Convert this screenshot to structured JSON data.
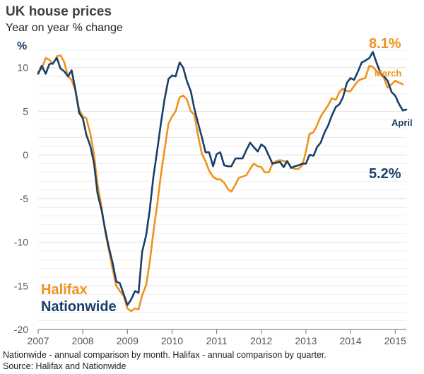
{
  "title": "UK house prices",
  "subtitle": "Year on year % change",
  "colors": {
    "halifax": "#f0921c",
    "nationwide": "#183f6a",
    "grid": "#e1e1e1",
    "axis": "#6e6e6e"
  },
  "footnotes": {
    "note": "Nationwide - annual comparison by month. Halifax - annual comparison by quarter.",
    "source": "Source: Halifax and Nationwide"
  },
  "chart_data": {
    "type": "line",
    "title": "UK house prices",
    "subtitle": "Year on year % change",
    "ylabel": "%",
    "xlabel": "",
    "xlim": [
      2007.0,
      2015.25
    ],
    "ylim": [
      -20,
      12
    ],
    "grid": true,
    "y_ticks": [
      {
        "value": 10,
        "label": "10"
      },
      {
        "value": 5,
        "label": "5"
      },
      {
        "value": 0,
        "label": "0"
      },
      {
        "value": -5,
        "label": "-5"
      },
      {
        "value": -10,
        "label": "-10"
      },
      {
        "value": -15,
        "label": "-15"
      },
      {
        "value": -20,
        "label": "-20"
      }
    ],
    "x_ticks": [
      {
        "value": 2007,
        "label": "2007"
      },
      {
        "value": 2008,
        "label": "2008"
      },
      {
        "value": 2009,
        "label": "2009"
      },
      {
        "value": 2010,
        "label": "2010"
      },
      {
        "value": 2011,
        "label": "2011"
      },
      {
        "value": 2012,
        "label": "2012"
      },
      {
        "value": 2013,
        "label": "2013"
      },
      {
        "value": 2014,
        "label": "2014"
      },
      {
        "value": 2015,
        "label": "2015"
      }
    ],
    "legend": [
      {
        "name": "Halifax",
        "series": "halifax",
        "placement": "bottom-left"
      },
      {
        "name": "Nationwide",
        "series": "nationwide",
        "placement": "bottom-left"
      }
    ],
    "annotations": {
      "halifax_latest_value": "8.1%",
      "halifax_latest_month": "March",
      "nationwide_latest_value": "5.2%",
      "nationwide_latest_month": "April"
    },
    "series": [
      {
        "name": "Halifax",
        "key": "halifax",
        "x": [
          2007.0,
          2007.08,
          2007.17,
          2007.25,
          2007.33,
          2007.42,
          2007.5,
          2007.58,
          2007.67,
          2007.75,
          2007.83,
          2007.92,
          2008.0,
          2008.08,
          2008.17,
          2008.25,
          2008.33,
          2008.42,
          2008.5,
          2008.58,
          2008.67,
          2008.75,
          2008.83,
          2008.92,
          2009.0,
          2009.08,
          2009.17,
          2009.25,
          2009.33,
          2009.42,
          2009.5,
          2009.58,
          2009.67,
          2009.75,
          2009.83,
          2009.92,
          2010.0,
          2010.08,
          2010.17,
          2010.25,
          2010.33,
          2010.42,
          2010.5,
          2010.58,
          2010.67,
          2010.75,
          2010.83,
          2010.92,
          2011.0,
          2011.08,
          2011.17,
          2011.25,
          2011.33,
          2011.42,
          2011.5,
          2011.58,
          2011.67,
          2011.75,
          2011.83,
          2011.92,
          2012.0,
          2012.08,
          2012.17,
          2012.25,
          2012.33,
          2012.42,
          2012.5,
          2012.58,
          2012.67,
          2012.75,
          2012.83,
          2012.92,
          2013.0,
          2013.08,
          2013.17,
          2013.25,
          2013.33,
          2013.42,
          2013.5,
          2013.58,
          2013.67,
          2013.75,
          2013.83,
          2013.92,
          2014.0,
          2014.08,
          2014.17,
          2014.25,
          2014.33,
          2014.42,
          2014.5,
          2014.58,
          2014.67,
          2014.75,
          2014.83,
          2014.92,
          2015.0,
          2015.08,
          2015.17
        ],
        "values": [
          9.5,
          9.9,
          11.1,
          10.9,
          10.4,
          11.3,
          11.4,
          10.7,
          9.0,
          8.6,
          7.4,
          5.2,
          4.4,
          4.2,
          2.4,
          0.1,
          -3.4,
          -5.9,
          -8.8,
          -10.8,
          -13.1,
          -15.0,
          -15.6,
          -16.2,
          -17.6,
          -17.9,
          -17.6,
          -17.7,
          -16.1,
          -14.9,
          -12.3,
          -8.9,
          -5.6,
          -2.3,
          0.5,
          3.6,
          4.4,
          5.0,
          6.6,
          6.8,
          6.4,
          5.0,
          4.6,
          2.3,
          0.1,
          -0.7,
          -1.8,
          -2.5,
          -2.8,
          -2.8,
          -3.2,
          -3.9,
          -4.2,
          -3.4,
          -2.6,
          -2.5,
          -2.3,
          -1.6,
          -1.0,
          -1.3,
          -1.4,
          -2.0,
          -2.0,
          -1.0,
          -0.7,
          -0.6,
          -0.7,
          -0.8,
          -1.4,
          -1.6,
          -1.6,
          -1.2,
          0.4,
          2.4,
          2.6,
          3.4,
          4.4,
          5.1,
          5.7,
          6.5,
          6.3,
          7.2,
          7.6,
          7.3,
          7.3,
          7.9,
          8.5,
          8.7,
          8.8,
          10.2,
          10.1,
          9.6,
          9.3,
          8.8,
          7.7,
          8.1,
          8.5,
          8.3,
          8.1
        ]
      },
      {
        "name": "Nationwide",
        "key": "nationwide",
        "x": [
          2007.0,
          2007.08,
          2007.17,
          2007.25,
          2007.33,
          2007.42,
          2007.5,
          2007.58,
          2007.67,
          2007.75,
          2007.83,
          2007.92,
          2008.0,
          2008.08,
          2008.17,
          2008.25,
          2008.33,
          2008.42,
          2008.5,
          2008.58,
          2008.67,
          2008.75,
          2008.83,
          2008.92,
          2009.0,
          2009.08,
          2009.17,
          2009.25,
          2009.33,
          2009.42,
          2009.5,
          2009.58,
          2009.67,
          2009.75,
          2009.83,
          2009.92,
          2010.0,
          2010.08,
          2010.17,
          2010.25,
          2010.33,
          2010.42,
          2010.5,
          2010.58,
          2010.67,
          2010.75,
          2010.83,
          2010.92,
          2011.0,
          2011.08,
          2011.17,
          2011.25,
          2011.33,
          2011.42,
          2011.5,
          2011.58,
          2011.67,
          2011.75,
          2011.83,
          2011.92,
          2012.0,
          2012.08,
          2012.17,
          2012.25,
          2012.33,
          2012.42,
          2012.5,
          2012.58,
          2012.67,
          2012.75,
          2012.83,
          2012.92,
          2013.0,
          2013.08,
          2013.17,
          2013.25,
          2013.33,
          2013.42,
          2013.5,
          2013.58,
          2013.67,
          2013.75,
          2013.83,
          2013.92,
          2014.0,
          2014.08,
          2014.17,
          2014.25,
          2014.33,
          2014.42,
          2014.5,
          2014.58,
          2014.67,
          2014.75,
          2014.83,
          2014.92,
          2015.0,
          2015.08,
          2015.17,
          2015.25
        ],
        "values": [
          9.3,
          10.2,
          9.3,
          10.4,
          10.5,
          11.1,
          9.9,
          9.6,
          9.0,
          9.7,
          7.6,
          4.8,
          4.2,
          2.3,
          1.0,
          -0.9,
          -4.4,
          -6.3,
          -8.5,
          -10.5,
          -12.4,
          -14.5,
          -14.7,
          -16.0,
          -17.2,
          -16.6,
          -15.6,
          -15.8,
          -11.1,
          -9.2,
          -6.3,
          -2.6,
          0.6,
          3.6,
          6.3,
          8.7,
          9.1,
          9.0,
          10.6,
          10.0,
          8.5,
          7.3,
          5.3,
          3.7,
          2.0,
          0.3,
          0.3,
          -1.3,
          0.1,
          0.3,
          -1.2,
          -1.3,
          -1.3,
          -0.4,
          -0.4,
          -0.4,
          0.6,
          1.4,
          0.9,
          0.4,
          1.2,
          0.9,
          -0.1,
          -1.0,
          -0.9,
          -0.8,
          -1.4,
          -0.7,
          -1.5,
          -1.3,
          -1.2,
          -1.0,
          -1.0,
          0.0,
          -0.1,
          0.9,
          1.4,
          2.6,
          3.4,
          4.5,
          5.5,
          5.8,
          6.6,
          8.3,
          8.8,
          8.6,
          9.6,
          10.6,
          10.8,
          11.1,
          11.8,
          10.6,
          9.4,
          9.0,
          8.5,
          7.2,
          6.8,
          5.9,
          5.1,
          5.2
        ]
      }
    ]
  }
}
